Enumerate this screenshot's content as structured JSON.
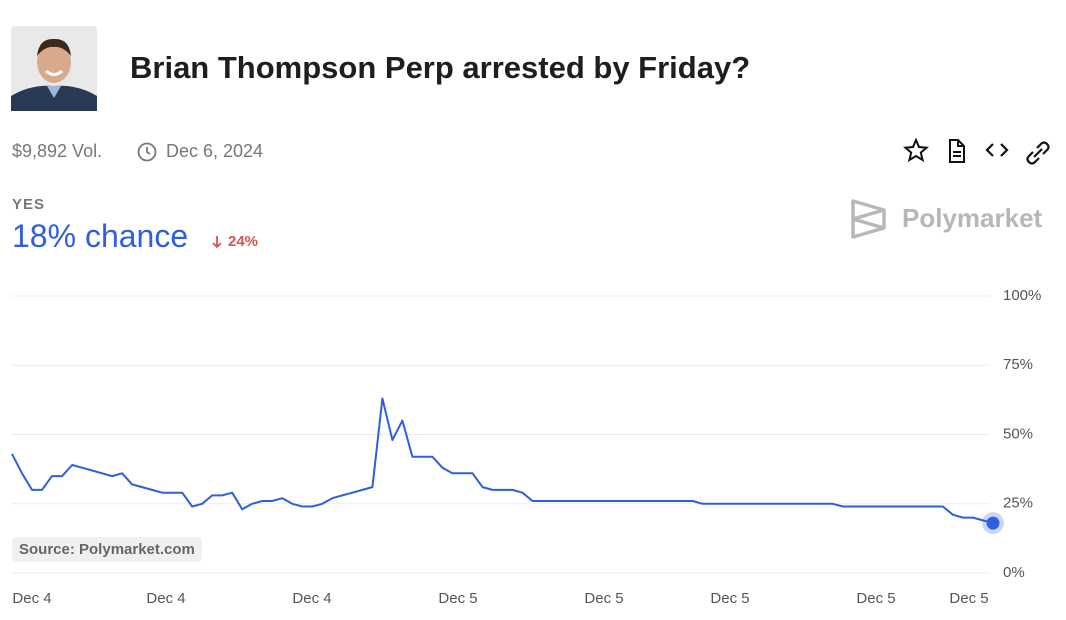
{
  "header": {
    "title": "Brian Thompson Perp arrested by Friday?",
    "volume": "$9,892 Vol.",
    "date": "Dec 6, 2024",
    "outcome": "YES",
    "chance": "18% chance",
    "change": "24%",
    "brand": "Polymarket",
    "source": "Source: Polymarket.com"
  },
  "chart_data": {
    "type": "line",
    "color": "#2d5fde",
    "values": [
      43,
      36,
      30,
      30,
      35,
      35,
      39,
      38,
      37,
      36,
      35,
      36,
      32,
      31,
      30,
      29,
      29,
      29,
      24,
      25,
      28,
      28,
      29,
      23,
      25,
      26,
      26,
      27,
      25,
      24,
      24,
      25,
      27,
      28,
      29,
      30,
      31,
      63,
      48,
      55,
      42,
      42,
      42,
      38,
      36,
      36,
      36,
      31,
      30,
      30,
      30,
      29,
      26,
      26,
      26,
      26,
      26,
      26,
      26,
      26,
      26,
      26,
      26,
      26,
      26,
      26,
      26,
      26,
      26,
      25,
      25,
      25,
      25,
      25,
      25,
      25,
      25,
      25,
      25,
      25,
      25,
      25,
      25,
      24,
      24,
      24,
      24,
      24,
      24,
      24,
      24,
      24,
      24,
      24,
      21,
      20,
      20,
      19,
      18
    ],
    "x_labels": [
      "Dec 4",
      "Dec 4",
      "Dec 4",
      "Dec 5",
      "Dec 5",
      "Dec 5",
      "Dec 5",
      "Dec 5"
    ],
    "ylim": [
      0,
      100
    ],
    "yticks": [
      {
        "value": 0,
        "label": "0%"
      },
      {
        "value": 25,
        "label": "25%"
      },
      {
        "value": 50,
        "label": "50%"
      },
      {
        "value": 75,
        "label": "75%"
      },
      {
        "value": 100,
        "label": "100%"
      }
    ],
    "grid": true
  }
}
